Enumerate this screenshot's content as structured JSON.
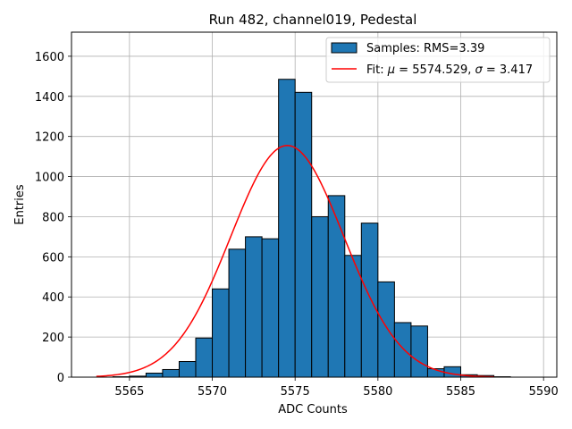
{
  "chart_data": {
    "type": "histogram",
    "title": "Run 482, channel019, Pedestal",
    "xlabel": "ADC Counts",
    "ylabel": "Entries",
    "xlim": [
      5561.5,
      5590.8
    ],
    "ylim": [
      0,
      1720
    ],
    "xticks": [
      5565,
      5570,
      5575,
      5580,
      5585,
      5590
    ],
    "yticks": [
      0,
      200,
      400,
      600,
      800,
      1000,
      1200,
      1400,
      1600
    ],
    "grid": true,
    "bin_width": 1,
    "bars": [
      {
        "x0": 5564,
        "value": 2
      },
      {
        "x0": 5565,
        "value": 5
      },
      {
        "x0": 5566,
        "value": 20
      },
      {
        "x0": 5567,
        "value": 38
      },
      {
        "x0": 5568,
        "value": 78
      },
      {
        "x0": 5569,
        "value": 195
      },
      {
        "x0": 5570,
        "value": 440
      },
      {
        "x0": 5571,
        "value": 638
      },
      {
        "x0": 5572,
        "value": 700
      },
      {
        "x0": 5573,
        "value": 690
      },
      {
        "x0": 5574,
        "value": 1485
      },
      {
        "x0": 5575,
        "value": 1420
      },
      {
        "x0": 5576,
        "value": 800
      },
      {
        "x0": 5577,
        "value": 905
      },
      {
        "x0": 5578,
        "value": 607
      },
      {
        "x0": 5579,
        "value": 768
      },
      {
        "x0": 5580,
        "value": 475
      },
      {
        "x0": 5581,
        "value": 272
      },
      {
        "x0": 5582,
        "value": 255
      },
      {
        "x0": 5583,
        "value": 42
      },
      {
        "x0": 5584,
        "value": 52
      },
      {
        "x0": 5585,
        "value": 12
      },
      {
        "x0": 5586,
        "value": 8
      },
      {
        "x0": 5587,
        "value": 2
      }
    ],
    "fit": {
      "mu": 5574.529,
      "sigma": 3.417,
      "amplitude": 1155,
      "x_range": [
        5563,
        5587
      ]
    },
    "legend": {
      "position": "top-right",
      "samples_label": "Samples: RMS=3.39",
      "fit_prefix": "Fit: ",
      "fit_mu_symbol": "μ",
      "fit_mu_text": " = 5574.529, ",
      "fit_sigma_symbol": "σ",
      "fit_sigma_text": " = 3.417"
    },
    "colors": {
      "bar_fill": "#1f77b4",
      "bar_edge": "#000000",
      "fit_line": "#ff0000",
      "grid": "#b0b0b0"
    }
  }
}
